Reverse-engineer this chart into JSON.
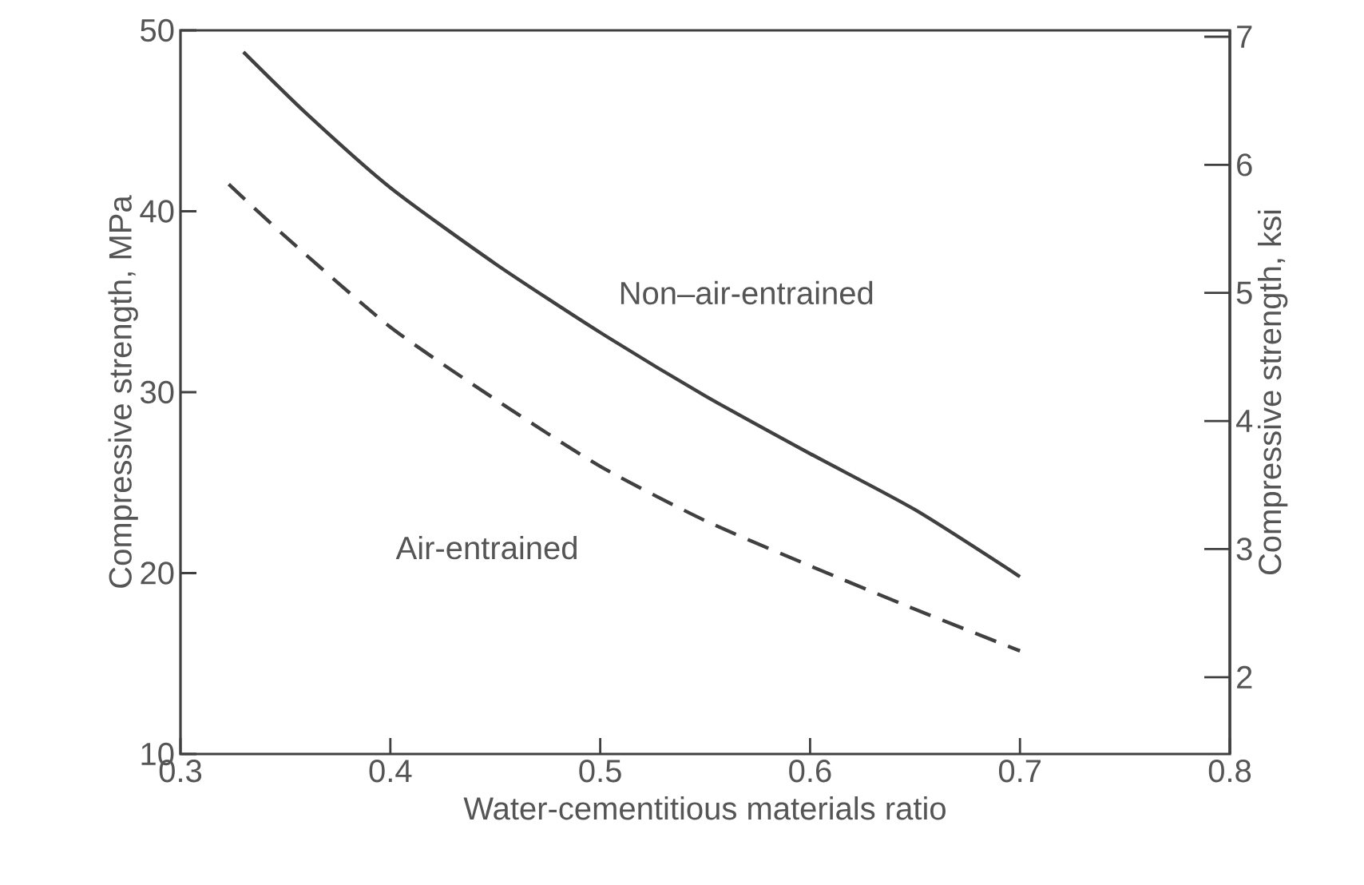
{
  "chart_data": {
    "type": "line",
    "xlabel": "Water-cementitious materials ratio",
    "ylabel": "Compressive strength, MPa",
    "y2label": "Compressive strength, ksi",
    "xlim": [
      0.3,
      0.8
    ],
    "xticks": [
      0.3,
      0.4,
      0.5,
      0.6,
      0.7,
      0.8
    ],
    "ylim": [
      10,
      50
    ],
    "yticks": [
      10,
      20,
      30,
      40,
      50
    ],
    "y2lim": [
      1.4,
      7.05
    ],
    "y2ticks": [
      2,
      3,
      4,
      5,
      6,
      7
    ],
    "grid": false,
    "legend": false,
    "marker": "none",
    "series": [
      {
        "name": "Non–air-entrained",
        "color": "#404040",
        "line_style": "solid",
        "x": [
          0.33,
          0.36,
          0.4,
          0.45,
          0.5,
          0.55,
          0.6,
          0.65,
          0.7
        ],
        "values": [
          48.8,
          45.4,
          41.3,
          37.1,
          33.3,
          29.8,
          26.6,
          23.5,
          19.8
        ]
      },
      {
        "name": "Air-entrained",
        "color": "#404040",
        "line_style": "dashed",
        "x": [
          0.323,
          0.35,
          0.4,
          0.45,
          0.5,
          0.55,
          0.6,
          0.65,
          0.7
        ],
        "values": [
          41.5,
          38.6,
          33.6,
          29.6,
          25.9,
          22.9,
          20.4,
          18.0,
          15.7
        ]
      }
    ]
  }
}
